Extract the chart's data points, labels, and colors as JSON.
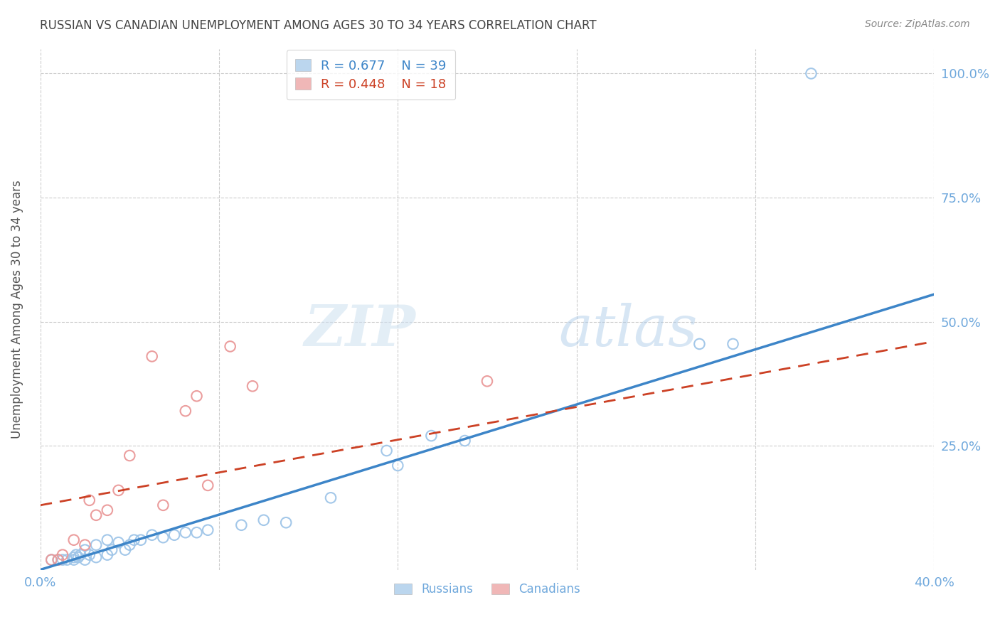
{
  "title": "RUSSIAN VS CANADIAN UNEMPLOYMENT AMONG AGES 30 TO 34 YEARS CORRELATION CHART",
  "source": "Source: ZipAtlas.com",
  "ylabel": "Unemployment Among Ages 30 to 34 years",
  "xlim": [
    0.0,
    0.4
  ],
  "ylim": [
    0.0,
    1.05
  ],
  "xticks": [
    0.0,
    0.08,
    0.16,
    0.24,
    0.32,
    0.4
  ],
  "xticklabels": [
    "0.0%",
    "",
    "",
    "",
    "",
    "40.0%"
  ],
  "yticks": [
    0.25,
    0.5,
    0.75,
    1.0
  ],
  "yticklabels": [
    "25.0%",
    "50.0%",
    "75.0%",
    "100.0%"
  ],
  "watermark_zip": "ZIP",
  "watermark_atlas": "atlas",
  "legend_blue_r": "0.677",
  "legend_blue_n": "39",
  "legend_pink_r": "0.448",
  "legend_pink_n": "18",
  "blue_color": "#9fc5e8",
  "pink_color": "#ea9999",
  "line_blue_color": "#3d85c8",
  "line_pink_color": "#cc4125",
  "axis_color": "#6fa8dc",
  "grid_color": "#cccccc",
  "title_color": "#434343",
  "source_color": "#888888",
  "blue_scatter_x": [
    0.005,
    0.008,
    0.01,
    0.012,
    0.015,
    0.015,
    0.016,
    0.017,
    0.018,
    0.02,
    0.02,
    0.022,
    0.025,
    0.025,
    0.03,
    0.03,
    0.032,
    0.035,
    0.038,
    0.04,
    0.042,
    0.045,
    0.05,
    0.055,
    0.06,
    0.065,
    0.07,
    0.075,
    0.09,
    0.1,
    0.11,
    0.13,
    0.155,
    0.16,
    0.175,
    0.19,
    0.295,
    0.31,
    0.345
  ],
  "blue_scatter_y": [
    0.02,
    0.02,
    0.02,
    0.02,
    0.02,
    0.025,
    0.03,
    0.025,
    0.03,
    0.02,
    0.04,
    0.03,
    0.025,
    0.05,
    0.03,
    0.06,
    0.04,
    0.055,
    0.04,
    0.05,
    0.06,
    0.06,
    0.07,
    0.065,
    0.07,
    0.075,
    0.075,
    0.08,
    0.09,
    0.1,
    0.095,
    0.145,
    0.24,
    0.21,
    0.27,
    0.26,
    0.455,
    0.455,
    1.0
  ],
  "pink_scatter_x": [
    0.005,
    0.008,
    0.01,
    0.015,
    0.02,
    0.022,
    0.025,
    0.03,
    0.035,
    0.04,
    0.05,
    0.055,
    0.065,
    0.07,
    0.075,
    0.085,
    0.095,
    0.2
  ],
  "pink_scatter_y": [
    0.02,
    0.02,
    0.03,
    0.06,
    0.05,
    0.14,
    0.11,
    0.12,
    0.16,
    0.23,
    0.43,
    0.13,
    0.32,
    0.35,
    0.17,
    0.45,
    0.37,
    0.38
  ],
  "blue_line_x0": 0.0,
  "blue_line_x1": 0.4,
  "blue_line_y0": 0.0,
  "blue_line_y1": 0.555,
  "pink_line_x0": 0.0,
  "pink_line_x1": 0.4,
  "pink_line_y0": 0.13,
  "pink_line_y1": 0.46
}
